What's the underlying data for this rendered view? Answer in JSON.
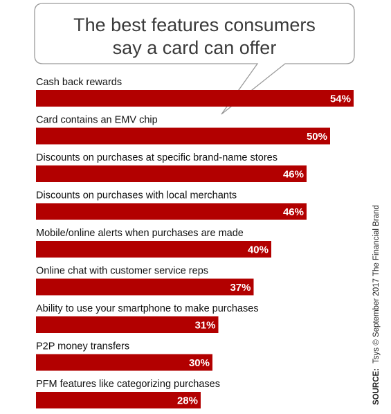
{
  "chart_data": {
    "type": "bar",
    "orientation": "horizontal",
    "title": "The best features consumers say a card can offer",
    "title_lines": [
      "The best features consumers",
      "say a card can offer"
    ],
    "categories": [
      "Cash back rewards",
      "Card contains an EMV chip",
      "Discounts on purchases at specific brand-name stores",
      "Discounts on purchases with local merchants",
      "Mobile/online alerts when purchases are made",
      "Online chat with customer service reps",
      "Ability to use your smartphone to make purchases",
      "P2P money transfers",
      "PFM features like categorizing purchases"
    ],
    "values": [
      54,
      50,
      46,
      46,
      40,
      37,
      31,
      30,
      28
    ],
    "value_labels": [
      "54%",
      "50%",
      "46%",
      "46%",
      "40%",
      "37%",
      "31%",
      "30%",
      "28%"
    ],
    "xlim": [
      0,
      54
    ],
    "legend": "none",
    "grid": false,
    "bar_color": "#b20000",
    "source_prefix": "SOURCE:",
    "source_text": "Tsys © September 2017 The Financial Brand"
  }
}
